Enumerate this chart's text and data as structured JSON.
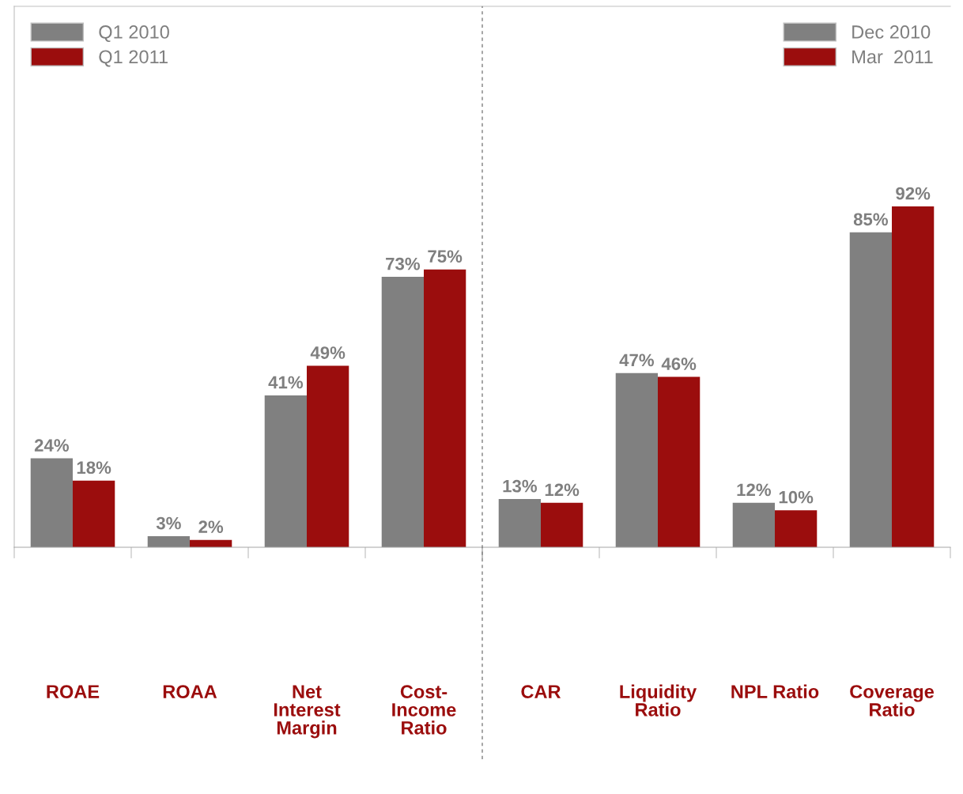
{
  "chart_data": [
    {
      "type": "bar",
      "categories": [
        "ROAE",
        "ROAA",
        "Net\nInterest\nMargin",
        "Cost-\nIncome\nRatio"
      ],
      "ylim": [
        0,
        146
      ],
      "tick_labels": "x",
      "legend": "top left",
      "series": [
        {
          "name": "Q1 2010",
          "color": "#808080",
          "values": [
            24,
            3,
            41,
            73
          ],
          "value_labels": [
            "24%",
            "3%",
            "41%",
            "73%"
          ]
        },
        {
          "name": "Q1 2011",
          "color": "#9b0d0d",
          "values": [
            18,
            2,
            49,
            75
          ],
          "value_labels": [
            "18%",
            "2%",
            "49%",
            "75%"
          ]
        }
      ]
    },
    {
      "type": "bar",
      "categories": [
        "CAR",
        "Liquidity\nRatio",
        "NPL Ratio",
        "Coverage\nRatio"
      ],
      "ylim": [
        0,
        146
      ],
      "tick_labels": "x",
      "legend": "top right",
      "series": [
        {
          "name": "Dec 2010",
          "color": "#808080",
          "values": [
            13,
            47,
            12,
            85
          ],
          "value_labels": [
            "13%",
            "47%",
            "12%",
            "85%"
          ]
        },
        {
          "name": "Mar  2011",
          "color": "#9b0d0d",
          "values": [
            12,
            46,
            10,
            92
          ],
          "value_labels": [
            "12%",
            "46%",
            "10%",
            "92%"
          ]
        }
      ]
    }
  ]
}
